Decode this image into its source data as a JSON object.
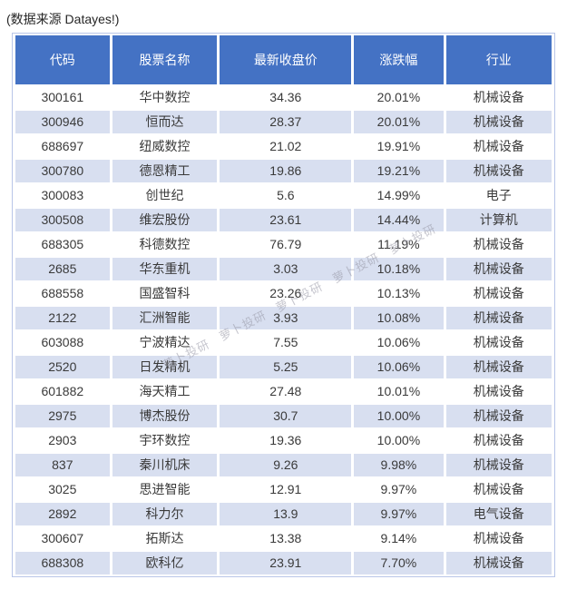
{
  "caption": "(数据来源 Datayes!)",
  "watermark": {
    "text": "萝卜投研",
    "repeat": 5
  },
  "colors": {
    "header_bg": "#4472c4",
    "header_text": "#ffffff",
    "stripe_bg": "#d8dff0",
    "row_bg": "#ffffff",
    "body_text": "#3a3a3a",
    "table_border": "#b9c6e8",
    "watermark": "#9898a5"
  },
  "chart_data": {
    "type": "table",
    "title": "",
    "columns": [
      "代码",
      "股票名称",
      "最新收盘价",
      "涨跌幅",
      "行业"
    ],
    "column_keys": [
      "code",
      "name",
      "close",
      "change",
      "industry"
    ],
    "column_widths_pct": [
      17.9,
      20.0,
      25.0,
      17.0,
      20.1
    ],
    "rows": [
      [
        "300161",
        "华中数控",
        "34.36",
        "20.01%",
        "机械设备"
      ],
      [
        "300946",
        "恒而达",
        "28.37",
        "20.01%",
        "机械设备"
      ],
      [
        "688697",
        "纽威数控",
        "21.02",
        "19.91%",
        "机械设备"
      ],
      [
        "300780",
        "德恩精工",
        "19.86",
        "19.21%",
        "机械设备"
      ],
      [
        "300083",
        "创世纪",
        "5.6",
        "14.99%",
        "电子"
      ],
      [
        "300508",
        "维宏股份",
        "23.61",
        "14.44%",
        "计算机"
      ],
      [
        "688305",
        "科德数控",
        "76.79",
        "11.19%",
        "机械设备"
      ],
      [
        "2685",
        "华东重机",
        "3.03",
        "10.18%",
        "机械设备"
      ],
      [
        "688558",
        "国盛智科",
        "23.26",
        "10.13%",
        "机械设备"
      ],
      [
        "2122",
        "汇洲智能",
        "3.93",
        "10.08%",
        "机械设备"
      ],
      [
        "603088",
        "宁波精达",
        "7.55",
        "10.06%",
        "机械设备"
      ],
      [
        "2520",
        "日发精机",
        "5.25",
        "10.06%",
        "机械设备"
      ],
      [
        "601882",
        "海天精工",
        "27.48",
        "10.01%",
        "机械设备"
      ],
      [
        "2975",
        "博杰股份",
        "30.7",
        "10.00%",
        "机械设备"
      ],
      [
        "2903",
        "宇环数控",
        "19.36",
        "10.00%",
        "机械设备"
      ],
      [
        "837",
        "秦川机床",
        "9.26",
        "9.98%",
        "机械设备"
      ],
      [
        "3025",
        "思进智能",
        "12.91",
        "9.97%",
        "机械设备"
      ],
      [
        "2892",
        "科力尔",
        "13.9",
        "9.97%",
        "电气设备"
      ],
      [
        "300607",
        "拓斯达",
        "13.38",
        "9.14%",
        "机械设备"
      ],
      [
        "688308",
        "欧科亿",
        "23.91",
        "7.70%",
        "机械设备"
      ]
    ]
  }
}
